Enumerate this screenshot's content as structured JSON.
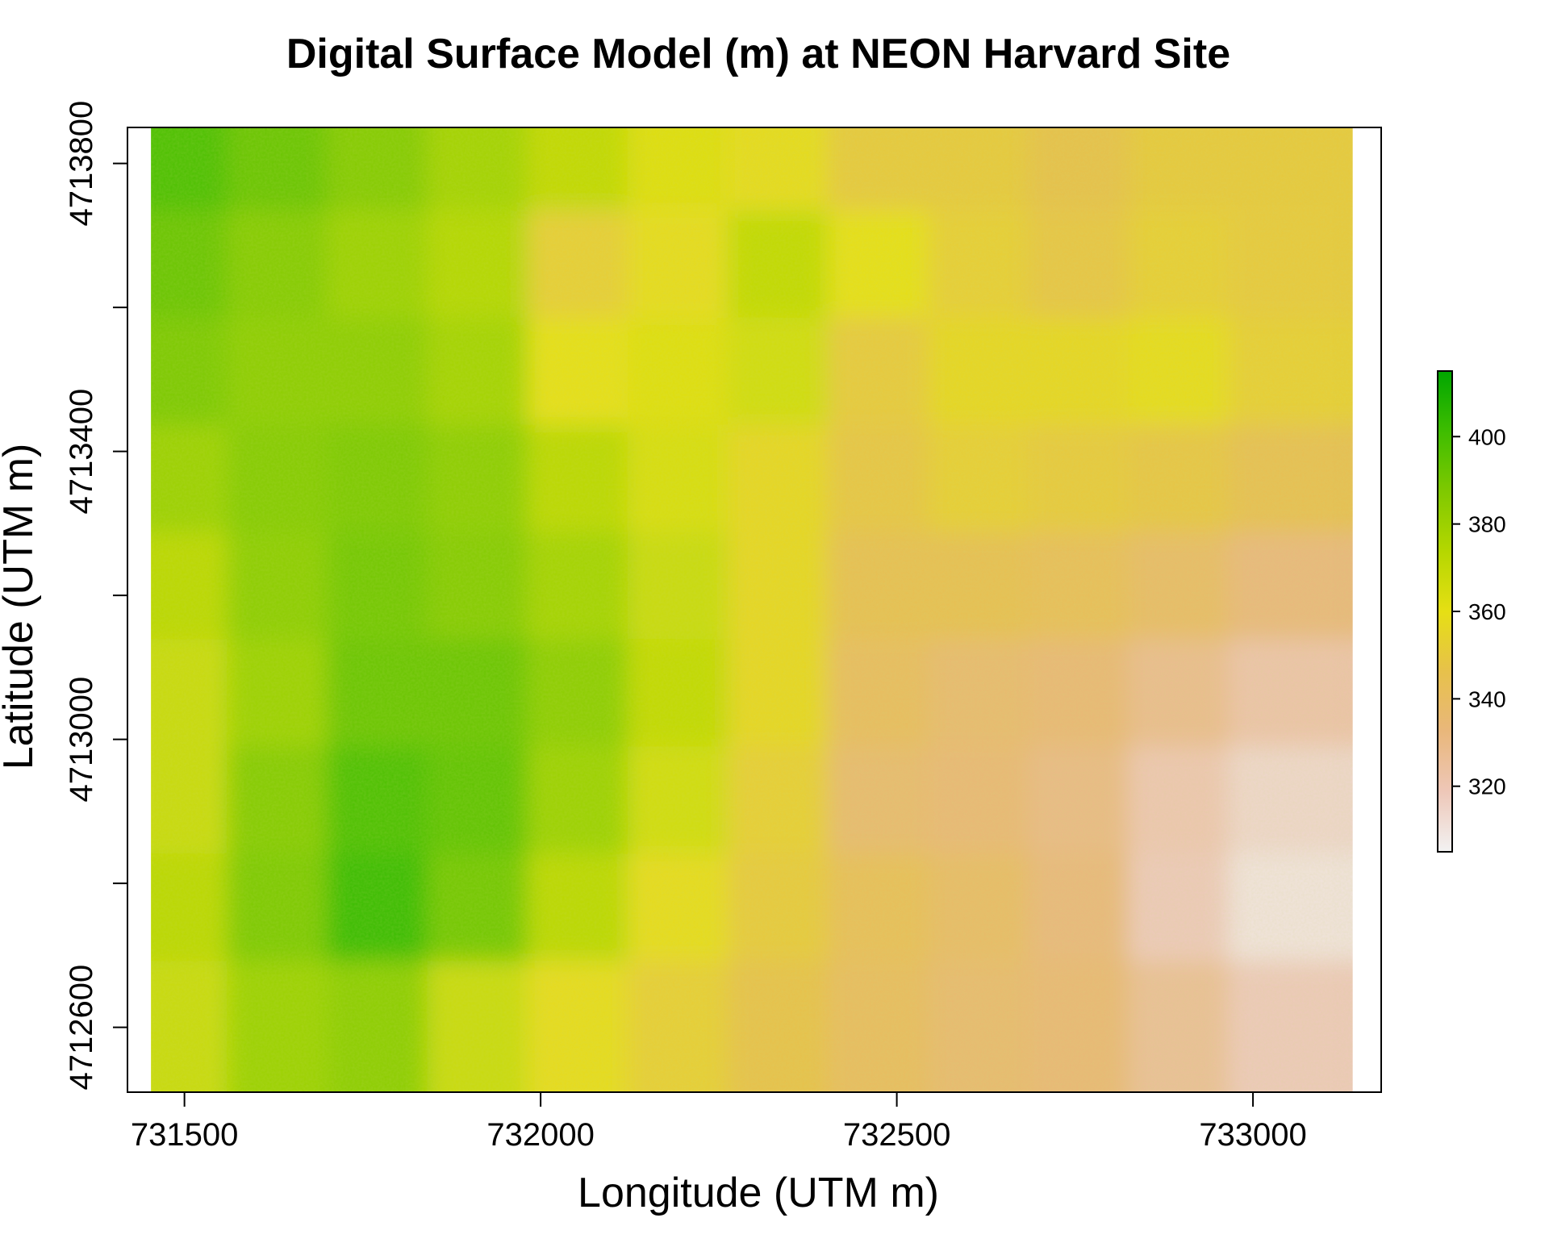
{
  "chart_data": {
    "type": "heatmap",
    "title": "Digital Surface Model (m) at NEON Harvard Site",
    "xlabel": "Longitude (UTM m)",
    "ylabel": "Latitude (UTM m)",
    "xlim": [
      731420,
      733180
    ],
    "ylim": [
      4712510,
      4713850
    ],
    "raster_extent": {
      "x": [
        731453,
        733140
      ],
      "y": [
        4712510,
        4713850
      ]
    },
    "x_ticks": [
      {
        "value": 731500,
        "label": "731500"
      },
      {
        "value": 732000,
        "label": "732000"
      },
      {
        "value": 732500,
        "label": "732500"
      },
      {
        "value": 733000,
        "label": "733000"
      }
    ],
    "y_ticks": [
      {
        "value": 4712600,
        "label": "4712600"
      },
      {
        "value": 4712800,
        "label": ""
      },
      {
        "value": 4713000,
        "label": "4713000"
      },
      {
        "value": 4713200,
        "label": ""
      },
      {
        "value": 4713400,
        "label": "4713400"
      },
      {
        "value": 4713600,
        "label": ""
      },
      {
        "value": 4713800,
        "label": "4713800"
      }
    ],
    "legend": {
      "placement": "right",
      "range": [
        305,
        415
      ],
      "ticks": [
        {
          "value": 320,
          "label": "320"
        },
        {
          "value": 340,
          "label": "340"
        },
        {
          "value": 360,
          "label": "360"
        },
        {
          "value": 380,
          "label": "380"
        },
        {
          "value": 400,
          "label": "400"
        }
      ],
      "colors": [
        "#f2f2f2",
        "#eec7b8",
        "#e9b77b",
        "#e7c14b",
        "#e6df14",
        "#b5d700",
        "#7fc900",
        "#3ebd00",
        "#00a600"
      ]
    },
    "grid": false,
    "surface": {
      "note": "approximate DSM elevation (m) sampled on a 12 x 9 grid, rows north to south, cols west to east",
      "cols": 12,
      "rows": 9,
      "values": [
        [
          398,
          392,
          386,
          378,
          370,
          362,
          358,
          350,
          350,
          346,
          350,
          350
        ],
        [
          392,
          386,
          380,
          374,
          352,
          358,
          370,
          360,
          352,
          348,
          352,
          350
        ],
        [
          388,
          384,
          384,
          378,
          360,
          362,
          366,
          350,
          356,
          356,
          358,
          352
        ],
        [
          380,
          386,
          388,
          384,
          372,
          364,
          356,
          348,
          352,
          350,
          348,
          344
        ],
        [
          372,
          384,
          390,
          386,
          378,
          368,
          356,
          344,
          344,
          342,
          338,
          332
        ],
        [
          368,
          380,
          392,
          392,
          384,
          370,
          356,
          340,
          336,
          334,
          328,
          322
        ],
        [
          368,
          386,
          398,
          394,
          380,
          366,
          352,
          336,
          334,
          330,
          320,
          314
        ],
        [
          372,
          388,
          402,
          390,
          372,
          358,
          350,
          342,
          338,
          332,
          318,
          310
        ],
        [
          368,
          380,
          384,
          368,
          358,
          352,
          346,
          340,
          336,
          334,
          326,
          318
        ]
      ]
    }
  }
}
